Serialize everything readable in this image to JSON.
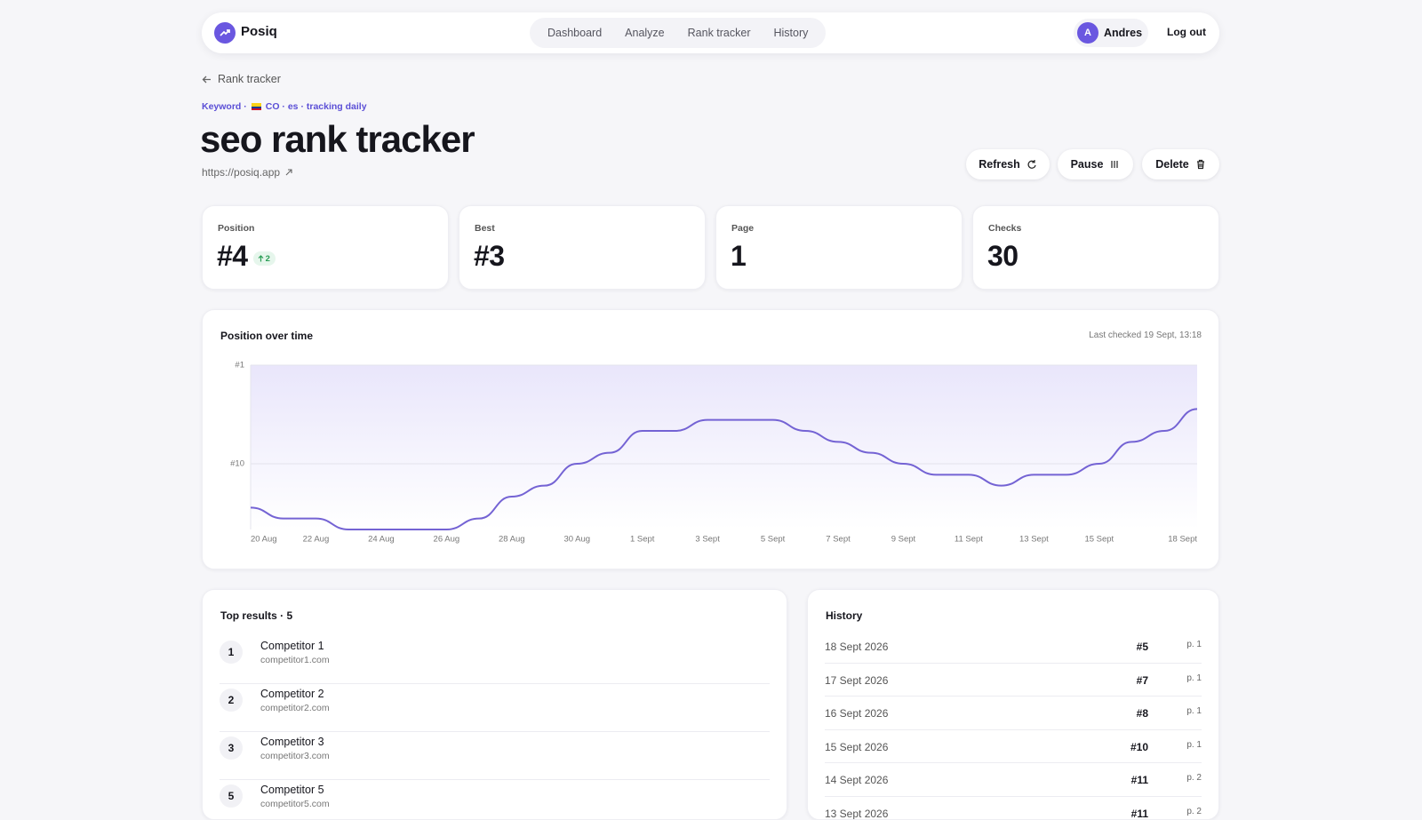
{
  "nav": {
    "brand": "Posiq",
    "links": [
      "Dashboard",
      "Analyze",
      "Rank tracker",
      "History"
    ],
    "user_initial": "A",
    "user": "Andres",
    "logout": "Log out"
  },
  "header": {
    "back": "Rank tracker",
    "meta_prefix": "Keyword ·",
    "meta": "CO · es · tracking daily",
    "title": "seo rank tracker",
    "url": "https://posiq.app",
    "actions": [
      "Refresh",
      "Pause",
      "Delete"
    ]
  },
  "stats": [
    {
      "label": "Position",
      "value": "#4",
      "change": "2"
    },
    {
      "label": "Best",
      "value": "#3"
    },
    {
      "label": "Page",
      "value": "1"
    },
    {
      "label": "Checks",
      "value": "30"
    }
  ],
  "chart_data": {
    "type": "area",
    "title": "Position over time",
    "subtitle": "Last checked 19 Sept, 13:18",
    "categories": [
      "20 Aug",
      null,
      "22 Aug",
      null,
      "24 Aug",
      null,
      "26 Aug",
      null,
      "28 Aug",
      null,
      "30 Aug",
      null,
      "1 Sept",
      null,
      "3 Sept",
      null,
      "5 Sept",
      null,
      "7 Sept",
      null,
      "9 Sept",
      null,
      "11 Sept",
      null,
      "13 Sept",
      null,
      "15 Sept",
      null,
      null,
      "18 Sept"
    ],
    "values": [
      14,
      15,
      15,
      16,
      16,
      16,
      16,
      15,
      13,
      12,
      10,
      9,
      7,
      7,
      6,
      6,
      6,
      7,
      8,
      9,
      10,
      11,
      11,
      12,
      11,
      11,
      10,
      8,
      7,
      5
    ],
    "color": "#7463d4",
    "ylim": [
      1,
      16
    ],
    "y_inverted": true,
    "yticks": [
      {
        "value": 1,
        "label": "#1"
      },
      {
        "value": 10,
        "label": "#10"
      }
    ],
    "grid": true
  },
  "top_results": {
    "title": "Top results · 5",
    "items": [
      {
        "rank": "1",
        "name": "Competitor 1",
        "domain": "competitor1.com"
      },
      {
        "rank": "2",
        "name": "Competitor 2",
        "domain": "competitor2.com"
      },
      {
        "rank": "3",
        "name": "Competitor 3",
        "domain": "competitor3.com"
      },
      {
        "rank": "5",
        "name": "Competitor 5",
        "domain": "competitor5.com"
      }
    ]
  },
  "history": {
    "title": "History",
    "rows": [
      {
        "date": "18 Sept 2026",
        "position": "#5",
        "page": "p. 1"
      },
      {
        "date": "17 Sept 2026",
        "position": "#7",
        "page": "p. 1"
      },
      {
        "date": "16 Sept 2026",
        "position": "#8",
        "page": "p. 1"
      },
      {
        "date": "15 Sept 2026",
        "position": "#10",
        "page": "p. 1"
      },
      {
        "date": "14 Sept 2026",
        "position": "#11",
        "page": "p. 2"
      },
      {
        "date": "13 Sept 2026",
        "position": "#11",
        "page": "p. 2"
      }
    ]
  }
}
